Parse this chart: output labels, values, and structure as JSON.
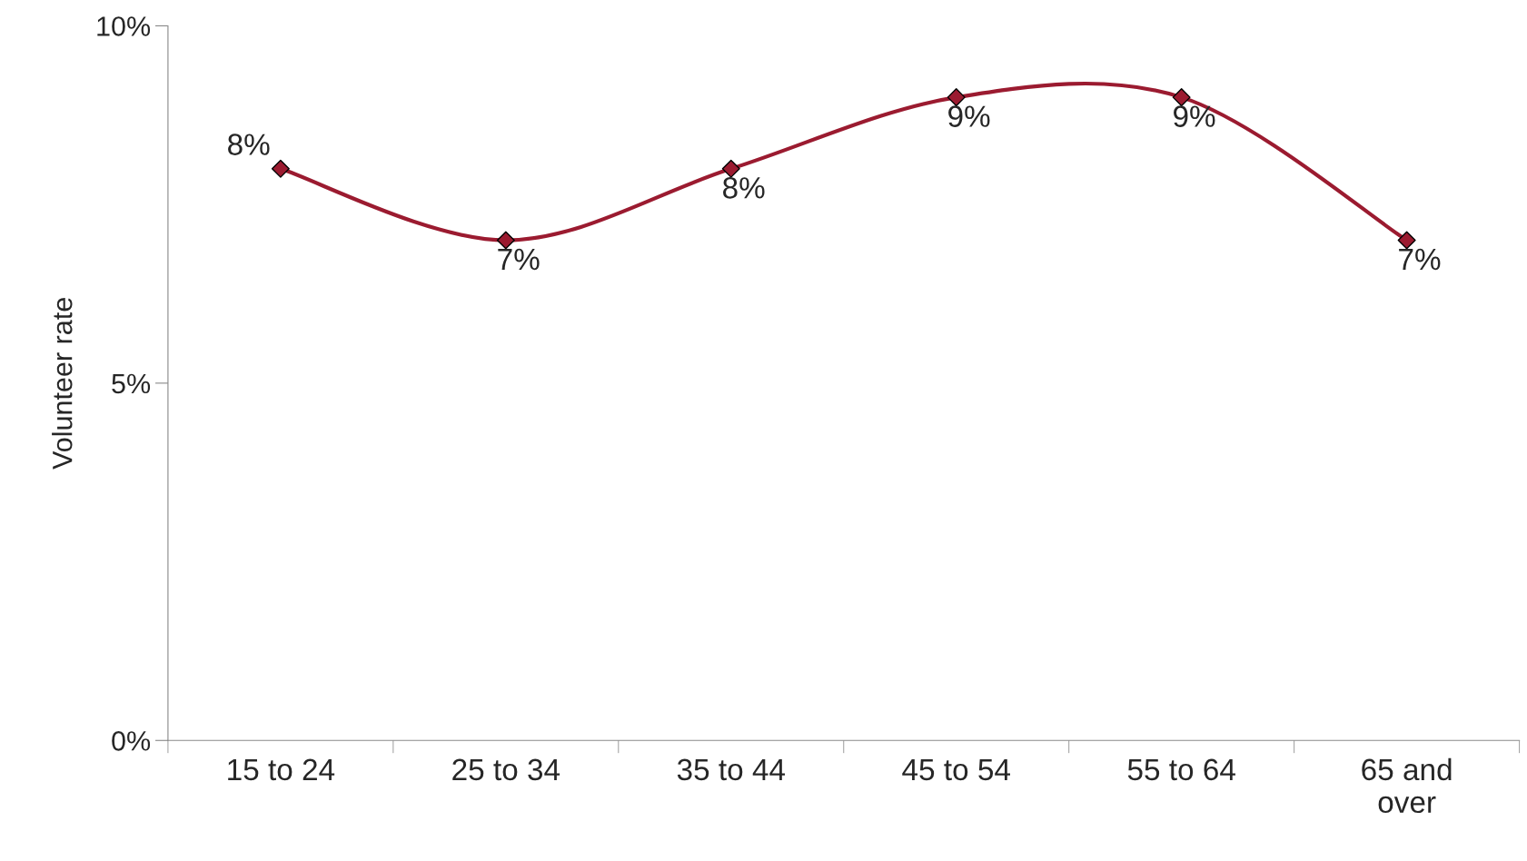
{
  "chart_data": {
    "type": "line",
    "ylabel": "Volunteer rate",
    "categories": [
      "15 to 24",
      "25 to 34",
      "35 to 44",
      "45 to 54",
      "55 to 64",
      "65 and over"
    ],
    "series": [
      {
        "color": "#9b1b30",
        "values": [
          8,
          7,
          8,
          9,
          9,
          7
        ],
        "value_labels": [
          "8%",
          "7%",
          "8%",
          "9%",
          "9%",
          "7%"
        ]
      }
    ],
    "ylim": [
      0,
      10
    ],
    "yticks": [
      {
        "value": 0,
        "label": "0%"
      },
      {
        "value": 5,
        "label": "5%"
      },
      {
        "value": 10,
        "label": "10%"
      }
    ],
    "marker": "diamond",
    "line_style": "solid",
    "grid": false
  }
}
